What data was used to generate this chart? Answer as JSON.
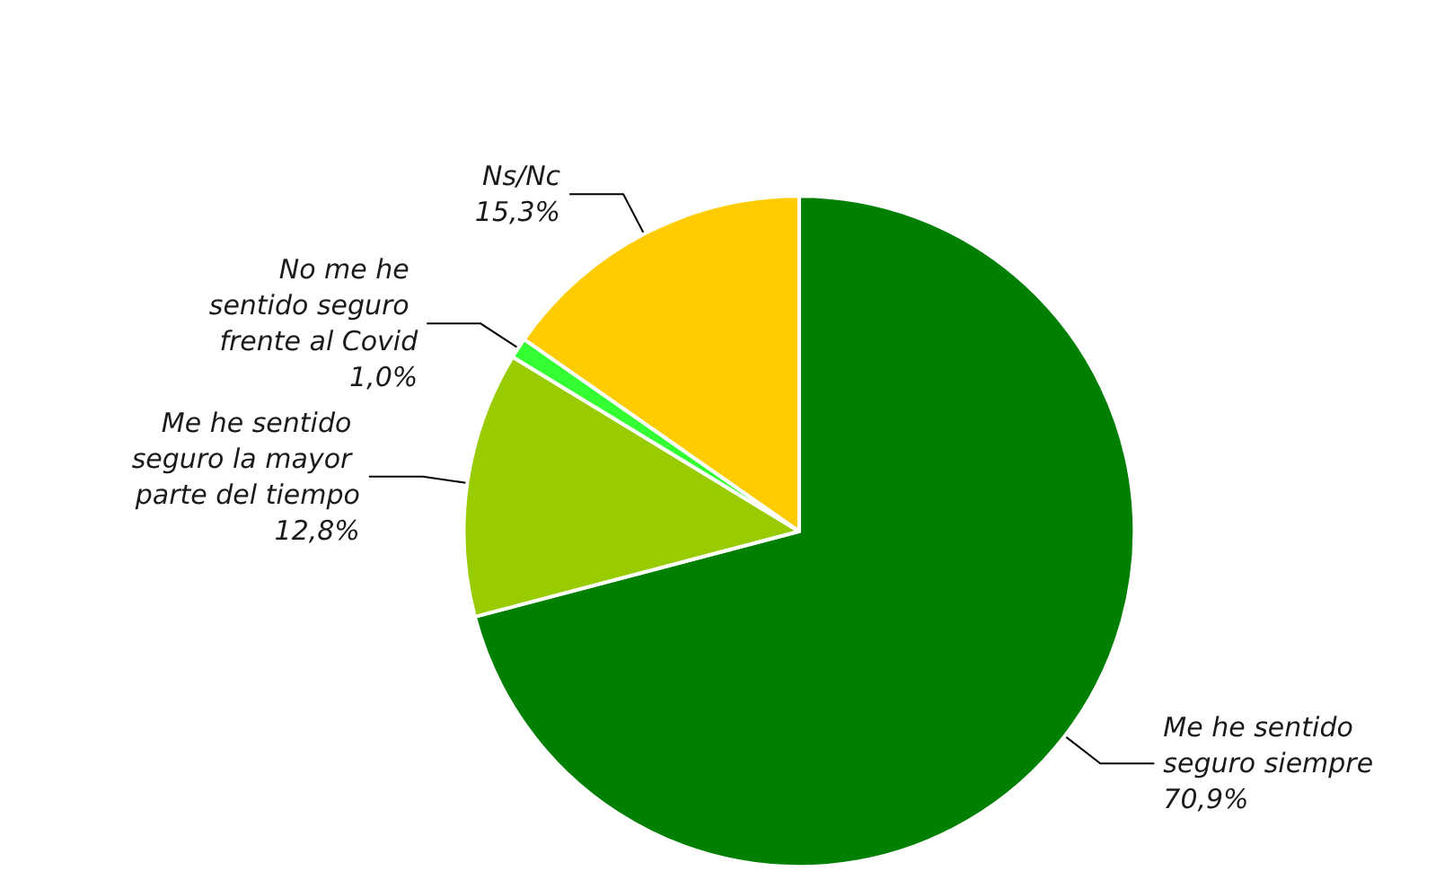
{
  "chart_data": {
    "type": "pie",
    "categories": [
      "Me he sentido seguro siempre",
      "Me he sentido seguro la mayor parte del tiempo",
      "No me he sentido seguro frente al Covid",
      "Ns/Nc"
    ],
    "values": [
      70.9,
      12.8,
      1.0,
      15.3
    ],
    "colors": [
      "#008000",
      "#99cc00",
      "#33ff33",
      "#ffcc00"
    ],
    "value_labels": [
      "70,9%",
      "12,8%",
      "1,0%",
      "15,3%"
    ],
    "legend": false
  }
}
